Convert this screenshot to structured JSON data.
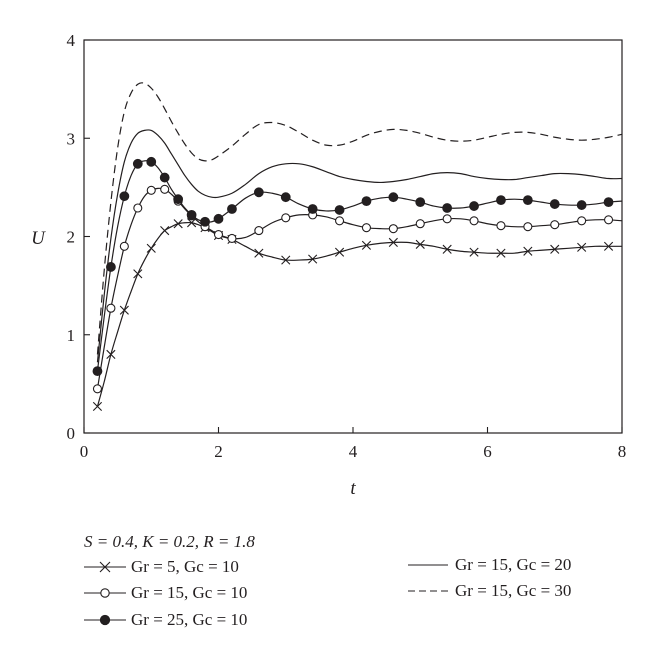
{
  "chart_data": {
    "type": "line",
    "xlabel": "t",
    "ylabel": "U",
    "xlim": [
      0,
      8
    ],
    "ylim": [
      0,
      4
    ],
    "xticks": [
      "0",
      "2",
      "4",
      "6",
      "8"
    ],
    "yticks": [
      "0",
      "1",
      "2",
      "3",
      "4"
    ],
    "grid": false,
    "legend_position": "bottom",
    "parameters_text": {
      "s": "S = 0.4,",
      "k": "K = 0.2,",
      "r": "R = 1.8"
    },
    "series": [
      {
        "name": "Gr = 5, Gc = 10",
        "marker": "x",
        "line": "solid",
        "marker_x": [
          0.2,
          0.4,
          0.6,
          0.8,
          1.0,
          1.2,
          1.4,
          1.6,
          1.8,
          2.0,
          2.2,
          2.6,
          3.0,
          3.4,
          3.8,
          4.2,
          4.6,
          5.0,
          5.4,
          5.8,
          6.2,
          6.6,
          7.0,
          7.4,
          7.8
        ],
        "x": [
          0.2,
          0.3,
          0.4,
          0.5,
          0.6,
          0.7,
          0.8,
          0.9,
          1.0,
          1.1,
          1.2,
          1.3,
          1.4,
          1.5,
          1.6,
          1.7,
          1.8,
          1.9,
          2.0,
          2.2,
          2.4,
          2.6,
          2.8,
          3.0,
          3.2,
          3.4,
          3.6,
          3.8,
          4.0,
          4.2,
          4.4,
          4.6,
          4.8,
          5.0,
          5.2,
          5.4,
          5.6,
          5.8,
          6.0,
          6.2,
          6.4,
          6.6,
          6.8,
          7.0,
          7.2,
          7.4,
          7.6,
          7.8,
          8.0
        ],
        "y": [
          0.27,
          0.52,
          0.8,
          1.03,
          1.25,
          1.44,
          1.62,
          1.76,
          1.88,
          1.98,
          2.06,
          2.1,
          2.13,
          2.14,
          2.14,
          2.12,
          2.09,
          2.05,
          2.01,
          1.97,
          1.9,
          1.83,
          1.79,
          1.76,
          1.76,
          1.77,
          1.8,
          1.84,
          1.88,
          1.91,
          1.93,
          1.94,
          1.94,
          1.92,
          1.9,
          1.87,
          1.85,
          1.84,
          1.83,
          1.83,
          1.83,
          1.85,
          1.86,
          1.87,
          1.88,
          1.89,
          1.9,
          1.9,
          1.9
        ]
      },
      {
        "name": "Gr = 15, Gc = 10",
        "marker": "open-circle",
        "line": "solid",
        "marker_x": [
          0.2,
          0.4,
          0.6,
          0.8,
          1.0,
          1.2,
          1.4,
          1.6,
          1.8,
          2.0,
          2.2,
          2.6,
          3.0,
          3.4,
          3.8,
          4.2,
          4.6,
          5.0,
          5.4,
          5.8,
          6.2,
          6.6,
          7.0,
          7.4,
          7.8
        ],
        "x": [
          0.2,
          0.3,
          0.4,
          0.5,
          0.6,
          0.7,
          0.8,
          0.9,
          1.0,
          1.1,
          1.2,
          1.3,
          1.4,
          1.5,
          1.6,
          1.7,
          1.8,
          1.9,
          2.0,
          2.2,
          2.4,
          2.6,
          2.8,
          3.0,
          3.2,
          3.4,
          3.6,
          3.8,
          4.0,
          4.2,
          4.4,
          4.6,
          4.8,
          5.0,
          5.2,
          5.4,
          5.6,
          5.8,
          6.0,
          6.2,
          6.4,
          6.6,
          6.8,
          7.0,
          7.2,
          7.4,
          7.6,
          7.8,
          8.0
        ],
        "y": [
          0.45,
          0.87,
          1.27,
          1.6,
          1.9,
          2.12,
          2.29,
          2.41,
          2.47,
          2.49,
          2.48,
          2.43,
          2.36,
          2.28,
          2.21,
          2.15,
          2.1,
          2.06,
          2.02,
          1.98,
          1.99,
          2.06,
          2.14,
          2.19,
          2.22,
          2.22,
          2.2,
          2.16,
          2.12,
          2.09,
          2.08,
          2.08,
          2.1,
          2.13,
          2.16,
          2.18,
          2.18,
          2.16,
          2.13,
          2.11,
          2.1,
          2.1,
          2.11,
          2.12,
          2.14,
          2.16,
          2.17,
          2.17,
          2.16
        ]
      },
      {
        "name": "Gr = 25, Gc = 10",
        "marker": "filled-circle",
        "line": "solid",
        "marker_x": [
          0.2,
          0.4,
          0.6,
          0.8,
          1.0,
          1.2,
          1.4,
          1.6,
          1.8,
          2.0,
          2.2,
          2.6,
          3.0,
          3.4,
          3.8,
          4.2,
          4.6,
          5.0,
          5.4,
          5.8,
          6.2,
          6.6,
          7.0,
          7.4,
          7.8
        ],
        "x": [
          0.2,
          0.3,
          0.4,
          0.5,
          0.6,
          0.7,
          0.8,
          0.9,
          1.0,
          1.1,
          1.2,
          1.3,
          1.4,
          1.5,
          1.6,
          1.7,
          1.8,
          1.9,
          2.0,
          2.2,
          2.4,
          2.6,
          2.8,
          3.0,
          3.2,
          3.4,
          3.6,
          3.8,
          4.0,
          4.2,
          4.4,
          4.6,
          4.8,
          5.0,
          5.2,
          5.4,
          5.6,
          5.8,
          6.0,
          6.2,
          6.4,
          6.6,
          6.8,
          7.0,
          7.2,
          7.4,
          7.6,
          7.8,
          8.0
        ],
        "y": [
          0.63,
          1.18,
          1.69,
          2.1,
          2.41,
          2.62,
          2.74,
          2.77,
          2.76,
          2.7,
          2.6,
          2.48,
          2.38,
          2.29,
          2.22,
          2.17,
          2.15,
          2.15,
          2.18,
          2.28,
          2.39,
          2.45,
          2.44,
          2.4,
          2.33,
          2.28,
          2.26,
          2.27,
          2.31,
          2.36,
          2.39,
          2.4,
          2.38,
          2.35,
          2.31,
          2.29,
          2.29,
          2.31,
          2.34,
          2.37,
          2.38,
          2.37,
          2.35,
          2.33,
          2.32,
          2.32,
          2.33,
          2.35,
          2.36
        ]
      },
      {
        "name": "Gr = 15, Gc = 20",
        "marker": "none",
        "line": "solid",
        "x": [
          0.2,
          0.3,
          0.4,
          0.5,
          0.6,
          0.7,
          0.8,
          0.9,
          1.0,
          1.1,
          1.2,
          1.3,
          1.4,
          1.5,
          1.6,
          1.7,
          1.8,
          1.9,
          2.0,
          2.2,
          2.4,
          2.6,
          2.8,
          3.0,
          3.2,
          3.4,
          3.6,
          3.8,
          4.0,
          4.2,
          4.4,
          4.6,
          4.8,
          5.0,
          5.2,
          5.4,
          5.6,
          5.8,
          6.0,
          6.2,
          6.4,
          6.6,
          6.8,
          7.0,
          7.2,
          7.4,
          7.6,
          7.8,
          8.0
        ],
        "y": [
          0.72,
          1.4,
          1.98,
          2.43,
          2.76,
          2.95,
          3.05,
          3.08,
          3.08,
          3.03,
          2.95,
          2.84,
          2.73,
          2.62,
          2.53,
          2.46,
          2.42,
          2.4,
          2.4,
          2.44,
          2.53,
          2.64,
          2.71,
          2.74,
          2.74,
          2.71,
          2.66,
          2.61,
          2.58,
          2.56,
          2.55,
          2.56,
          2.58,
          2.61,
          2.64,
          2.65,
          2.64,
          2.61,
          2.59,
          2.58,
          2.58,
          2.6,
          2.62,
          2.64,
          2.64,
          2.63,
          2.61,
          2.59,
          2.59
        ]
      },
      {
        "name": "Gr = 15, Gc = 30",
        "marker": "none",
        "line": "dashed",
        "x": [
          0.2,
          0.3,
          0.4,
          0.5,
          0.6,
          0.7,
          0.8,
          0.9,
          1.0,
          1.1,
          1.2,
          1.3,
          1.4,
          1.5,
          1.6,
          1.7,
          1.8,
          1.9,
          2.0,
          2.2,
          2.4,
          2.6,
          2.8,
          3.0,
          3.2,
          3.4,
          3.6,
          3.8,
          4.0,
          4.2,
          4.4,
          4.6,
          4.8,
          5.0,
          5.2,
          5.4,
          5.6,
          5.8,
          6.0,
          6.2,
          6.4,
          6.6,
          6.8,
          7.0,
          7.2,
          7.4,
          7.6,
          7.8,
          8.0
        ],
        "y": [
          0.8,
          1.65,
          2.35,
          2.9,
          3.27,
          3.46,
          3.55,
          3.56,
          3.51,
          3.42,
          3.3,
          3.17,
          3.05,
          2.94,
          2.85,
          2.79,
          2.77,
          2.78,
          2.82,
          2.92,
          3.04,
          3.14,
          3.16,
          3.13,
          3.06,
          2.98,
          2.93,
          2.93,
          2.97,
          3.03,
          3.07,
          3.09,
          3.08,
          3.05,
          3.01,
          2.98,
          2.97,
          2.98,
          3.01,
          3.04,
          3.06,
          3.06,
          3.04,
          3.01,
          2.99,
          2.98,
          2.99,
          3.01,
          3.04
        ]
      }
    ]
  }
}
